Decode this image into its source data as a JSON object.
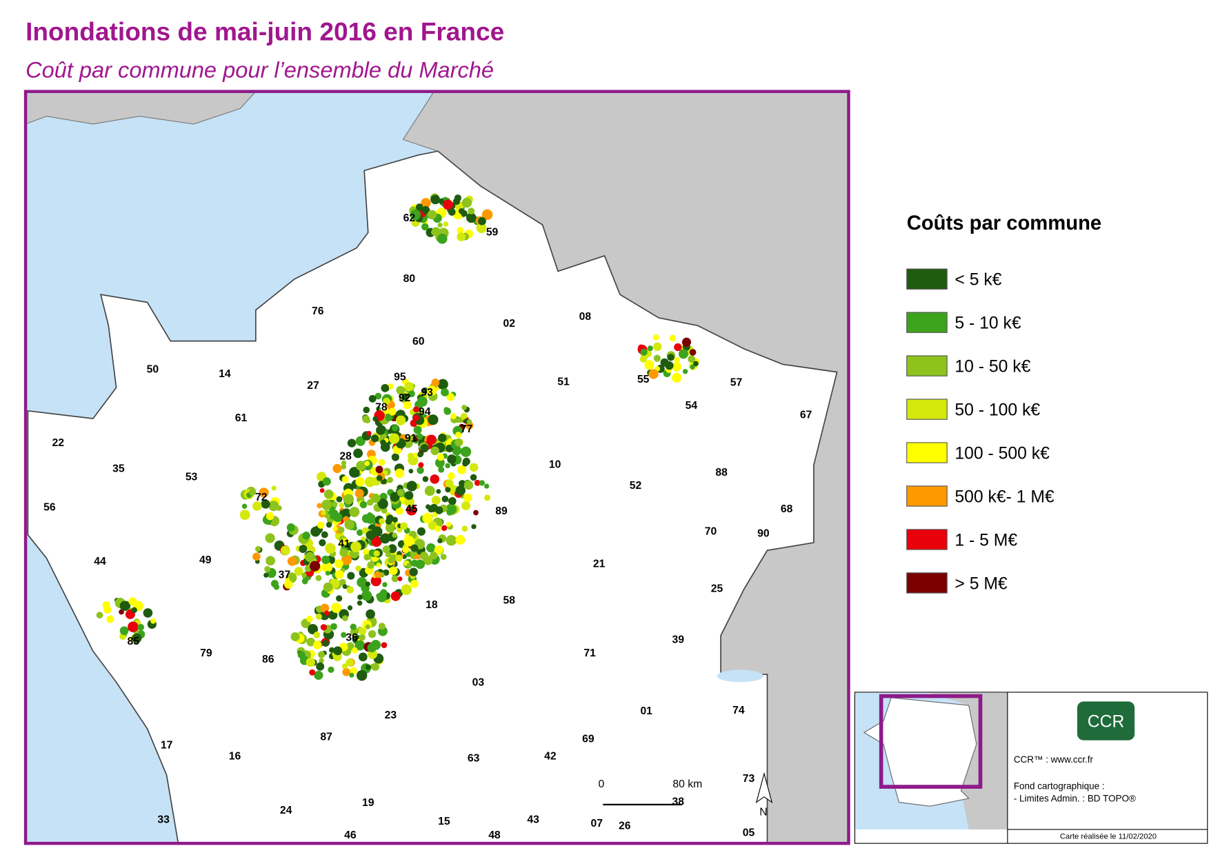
{
  "header": {
    "title": "Inondations de mai-juin 2016 en France",
    "subtitle": "Coût par commune pour l’ensemble du Marché"
  },
  "legend": {
    "title": "Coûts par commune",
    "items": [
      {
        "label": "< 5 k€",
        "color": "#1f5c0f"
      },
      {
        "label": "5 - 10 k€",
        "color": "#3ca31c"
      },
      {
        "label": "10 - 50 k€",
        "color": "#8dc31c"
      },
      {
        "label": "50 - 100 k€",
        "color": "#d4e80c"
      },
      {
        "label": "100 - 500 k€",
        "color": "#ffff00"
      },
      {
        "label": "500 k€- 1 M€",
        "color": "#ff9900"
      },
      {
        "label": "1 - 5 M€",
        "color": "#e8000b"
      },
      {
        "label": "> 5 M€",
        "color": "#7a0000"
      }
    ]
  },
  "departments": [
    "62",
    "59",
    "80",
    "76",
    "02",
    "08",
    "60",
    "50",
    "14",
    "27",
    "95",
    "51",
    "55",
    "57",
    "78",
    "92",
    "93",
    "94",
    "54",
    "67",
    "61",
    "77",
    "91",
    "22",
    "28",
    "35",
    "53",
    "10",
    "88",
    "52",
    "72",
    "45",
    "89",
    "56",
    "68",
    "70",
    "90",
    "41",
    "44",
    "49",
    "21",
    "37",
    "25",
    "18",
    "58",
    "85",
    "36",
    "79",
    "86",
    "71",
    "39",
    "03",
    "01",
    "74",
    "23",
    "87",
    "17",
    "16",
    "69",
    "63",
    "42",
    "73",
    "38",
    "19",
    "24",
    "33",
    "15",
    "43",
    "07",
    "26",
    "46",
    "48",
    "05"
  ],
  "scale_bar": {
    "start": "0",
    "end": "80 km"
  },
  "north": "N",
  "credits": {
    "logo": "CCR",
    "site": "CCR™ : www.ccr.fr",
    "source_title": "Fond cartographique :",
    "source": "- Limites Admin. : BD TOPO®",
    "date": "Carte réalisée le 11/02/2020"
  }
}
